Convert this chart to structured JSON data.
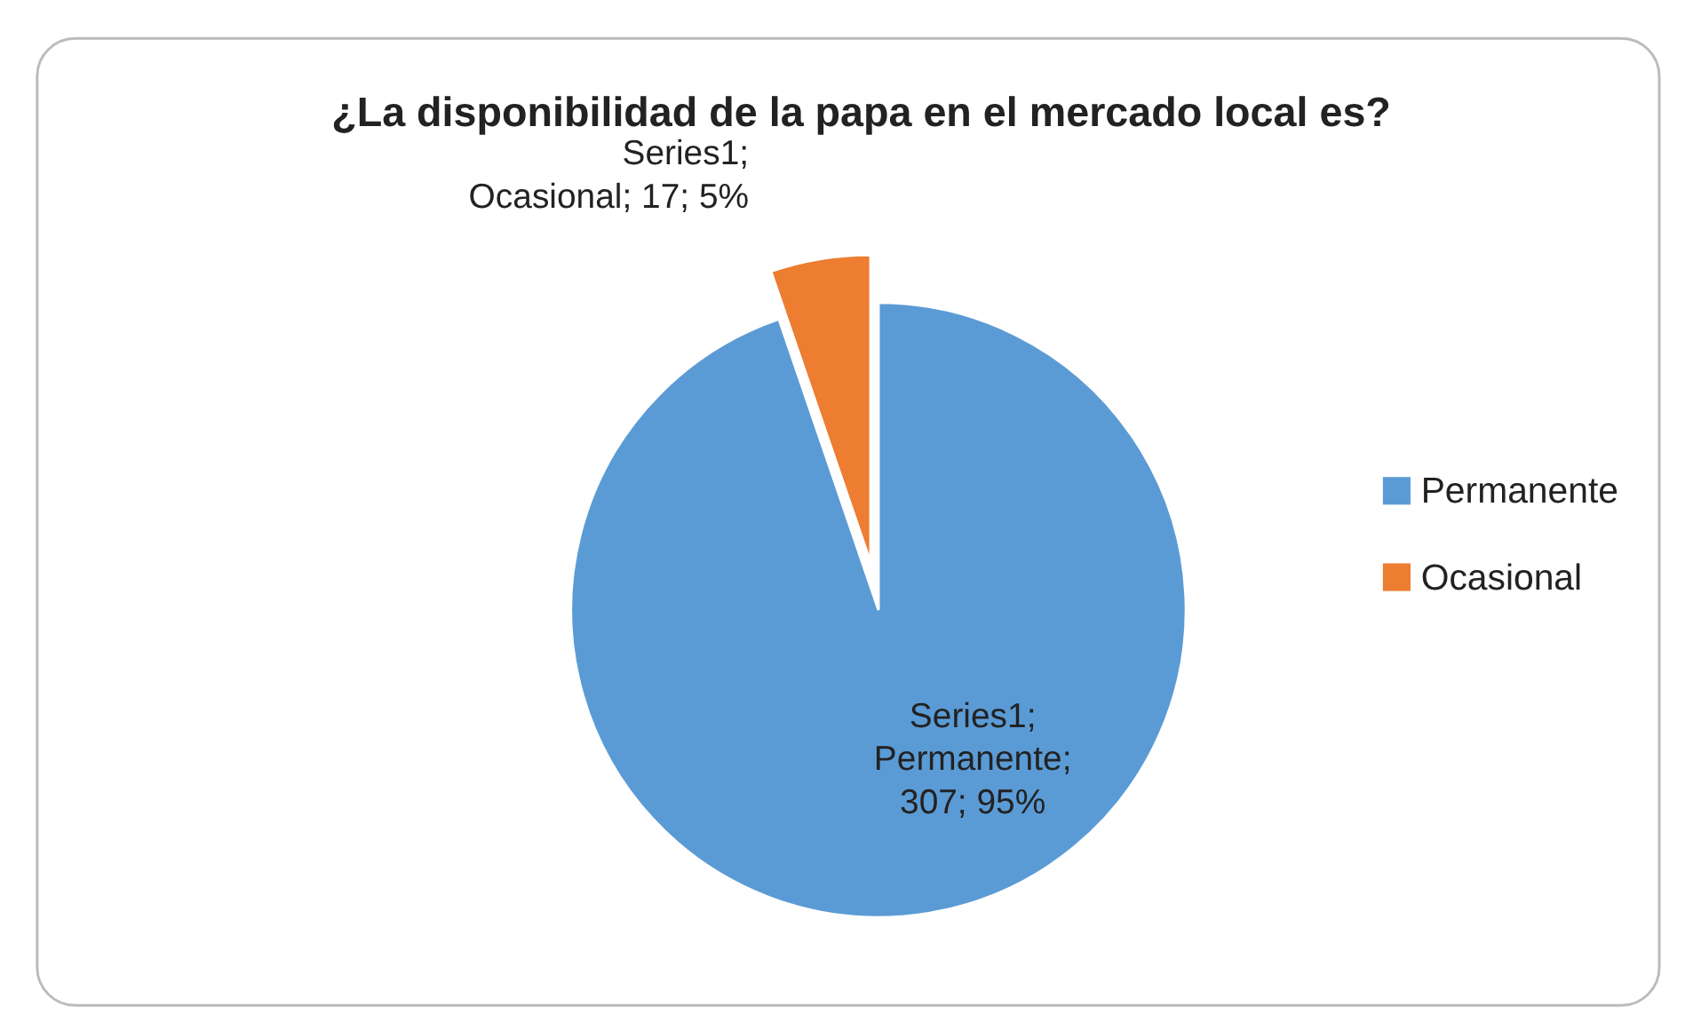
{
  "chart_data": {
    "type": "pie",
    "title": "¿La disponibilidad de la papa en el mercado local es?",
    "categories": [
      "Permanente",
      "Ocasional"
    ],
    "values": [
      307,
      17
    ],
    "colors": [
      "#5b9bd5",
      "#ed7d31"
    ],
    "value_labels": [
      "Series1; Permanente; 307; 95%",
      "Series1; Ocasional; 17; 5%"
    ],
    "legend": "right"
  }
}
